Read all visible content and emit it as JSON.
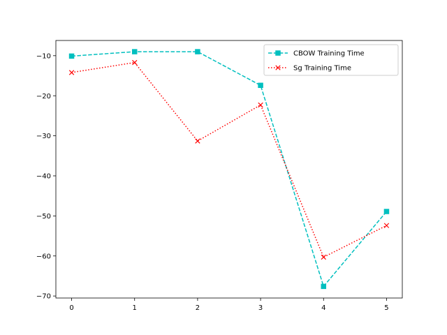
{
  "chart_data": {
    "type": "line",
    "title": "",
    "xlabel": "",
    "ylabel": "",
    "x": [
      0,
      1,
      2,
      3,
      4,
      5
    ],
    "xlim": [
      -0.25,
      5.25
    ],
    "ylim": [
      -70.5,
      -6.2
    ],
    "xticks": [
      0,
      1,
      2,
      3,
      4,
      5
    ],
    "yticks": [
      -70,
      -60,
      -50,
      -40,
      -30,
      -20,
      -10
    ],
    "xtick_labels": [
      "0",
      "1",
      "2",
      "3",
      "4",
      "5"
    ],
    "ytick_labels": [
      "−70",
      "−60",
      "−50",
      "−40",
      "−30",
      "−20",
      "−10"
    ],
    "grid": false,
    "legend_position": "upper right",
    "series": [
      {
        "name": "CBOW Training Time",
        "values": [
          -10.1,
          -9.0,
          -9.0,
          -17.4,
          -67.6,
          -48.9
        ],
        "color": "#00bfbf",
        "line_style": "dashed",
        "marker": "square"
      },
      {
        "name": "Sg Training Time",
        "values": [
          -14.2,
          -11.7,
          -31.3,
          -22.3,
          -60.3,
          -52.4
        ],
        "color": "#ff0000",
        "line_style": "dotted",
        "marker": "x"
      }
    ]
  }
}
